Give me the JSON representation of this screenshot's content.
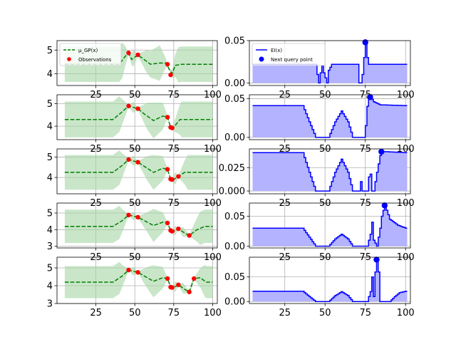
{
  "colors": {
    "mean": "#008000",
    "band": "#a5d6a5",
    "obs": "#ff0000",
    "ei_line": "#0000ff",
    "ei_fill": "#b3b3ff",
    "grid": "#b0b0b0"
  },
  "legend_gp": {
    "mean": "μ_GP(x)",
    "obs": "Observations"
  },
  "legend_ei": {
    "ei": "EI(x)",
    "query": "Next query point"
  },
  "chart_data": [
    {
      "type": "line",
      "panel": "gp",
      "row": 0,
      "xlim": [
        0,
        103
      ],
      "ylim": [
        3.5,
        5.4
      ],
      "xticks": [
        25,
        50,
        75,
        100
      ],
      "xtick_labels": [
        "25",
        "50",
        "75",
        "100"
      ],
      "yticks": [
        4,
        5
      ],
      "ytick_labels": [
        "4",
        "5"
      ],
      "grid": true,
      "legend": "upper-left",
      "observations": [
        [
          46,
          4.88
        ],
        [
          52,
          4.8
        ],
        [
          71,
          4.4
        ],
        [
          73,
          3.95
        ]
      ],
      "mean_curve": [
        [
          5,
          4.4
        ],
        [
          40,
          4.4
        ],
        [
          44,
          4.75
        ],
        [
          46,
          4.85
        ],
        [
          48,
          4.6
        ],
        [
          50,
          4.7
        ],
        [
          52,
          4.78
        ],
        [
          55,
          4.65
        ],
        [
          60,
          4.4
        ],
        [
          66,
          4.45
        ],
        [
          70,
          4.45
        ],
        [
          72,
          4.2
        ],
        [
          74,
          4.0
        ],
        [
          76,
          4.35
        ],
        [
          80,
          4.4
        ],
        [
          100,
          4.4
        ]
      ],
      "band_half_width": [
        [
          5,
          0.75
        ],
        [
          42,
          0.75
        ],
        [
          46,
          0.05
        ],
        [
          49,
          0.35
        ],
        [
          52,
          0.05
        ],
        [
          58,
          0.5
        ],
        [
          66,
          0.75
        ],
        [
          71,
          0.05
        ],
        [
          73,
          0.05
        ],
        [
          78,
          0.75
        ],
        [
          100,
          0.75
        ]
      ]
    },
    {
      "type": "area",
      "panel": "ei",
      "row": 0,
      "xlim": [
        3,
        103
      ],
      "ylim": [
        -0.003,
        0.05
      ],
      "xticks": [
        25,
        50,
        75,
        100
      ],
      "xtick_labels": [
        "25",
        "50",
        "75",
        "100"
      ],
      "yticks": [
        0.0,
        0.05
      ],
      "ytick_labels": [
        "0.00",
        "0.05"
      ],
      "grid": true,
      "legend": "upper-left",
      "next_query": [
        75,
        0.048
      ],
      "curve": [
        [
          5,
          0.022
        ],
        [
          44,
          0.022
        ],
        [
          45,
          0.01
        ],
        [
          46,
          0.0
        ],
        [
          47,
          0.012
        ],
        [
          48,
          0.02
        ],
        [
          49,
          0.012
        ],
        [
          51,
          0.0
        ],
        [
          52,
          0.015
        ],
        [
          54,
          0.022
        ],
        [
          70,
          0.022
        ],
        [
          71,
          0.0
        ],
        [
          72,
          0.0
        ],
        [
          73,
          0.01
        ],
        [
          74,
          0.03
        ],
        [
          75,
          0.048
        ],
        [
          76,
          0.03
        ],
        [
          77,
          0.022
        ],
        [
          100,
          0.022
        ]
      ]
    },
    {
      "type": "line",
      "panel": "gp",
      "row": 1,
      "xlim": [
        0,
        103
      ],
      "ylim": [
        3.4,
        5.4
      ],
      "xticks": [
        25,
        50,
        75,
        100
      ],
      "xtick_labels": [
        "25",
        "50",
        "75",
        "100"
      ],
      "yticks": [
        4,
        5
      ],
      "ytick_labels": [
        "4",
        "5"
      ],
      "grid": true,
      "observations": [
        [
          46,
          4.9
        ],
        [
          52,
          4.78
        ],
        [
          71,
          4.4
        ],
        [
          73,
          3.95
        ],
        [
          74,
          3.92
        ]
      ],
      "mean_curve": [
        [
          5,
          4.3
        ],
        [
          36,
          4.3
        ],
        [
          42,
          4.65
        ],
        [
          46,
          4.9
        ],
        [
          52,
          4.78
        ],
        [
          56,
          4.55
        ],
        [
          62,
          4.25
        ],
        [
          68,
          4.45
        ],
        [
          71,
          4.4
        ],
        [
          73,
          3.95
        ],
        [
          75,
          3.95
        ],
        [
          79,
          4.3
        ],
        [
          100,
          4.3
        ]
      ],
      "band_half_width": [
        [
          5,
          0.8
        ],
        [
          40,
          0.8
        ],
        [
          46,
          0.05
        ],
        [
          49,
          0.25
        ],
        [
          52,
          0.05
        ],
        [
          58,
          0.6
        ],
        [
          62,
          0.8
        ],
        [
          68,
          0.6
        ],
        [
          71,
          0.05
        ],
        [
          74,
          0.05
        ],
        [
          80,
          0.8
        ],
        [
          100,
          0.8
        ]
      ]
    },
    {
      "type": "area",
      "panel": "ei",
      "row": 1,
      "xlim": [
        3,
        103
      ],
      "ylim": [
        -0.003,
        0.055
      ],
      "xticks": [
        25,
        50,
        75,
        100
      ],
      "xtick_labels": [
        "25",
        "50",
        "75",
        "100"
      ],
      "yticks": [
        0.0,
        0.05
      ],
      "ytick_labels": [
        "0.00",
        "0.05"
      ],
      "grid": true,
      "next_query": [
        78,
        0.052
      ],
      "curve": [
        [
          5,
          0.041
        ],
        [
          36,
          0.041
        ],
        [
          40,
          0.02
        ],
        [
          44,
          0.0
        ],
        [
          52,
          0.0
        ],
        [
          56,
          0.02
        ],
        [
          60,
          0.034
        ],
        [
          64,
          0.02
        ],
        [
          67,
          0.0
        ],
        [
          72,
          0.0
        ],
        [
          74,
          0.0
        ],
        [
          75,
          0.015
        ],
        [
          76,
          0.04
        ],
        [
          77,
          0.05
        ],
        [
          78,
          0.052
        ],
        [
          80,
          0.046
        ],
        [
          84,
          0.042
        ],
        [
          100,
          0.041
        ]
      ]
    },
    {
      "type": "line",
      "panel": "gp",
      "row": 2,
      "xlim": [
        0,
        103
      ],
      "ylim": [
        3.2,
        5.4
      ],
      "xticks": [
        25,
        50,
        75,
        100
      ],
      "xtick_labels": [
        "25",
        "50",
        "75",
        "100"
      ],
      "yticks": [
        4,
        5
      ],
      "ytick_labels": [
        "4",
        "5"
      ],
      "grid": true,
      "observations": [
        [
          46,
          4.88
        ],
        [
          52,
          4.75
        ],
        [
          71,
          4.4
        ],
        [
          73,
          3.92
        ],
        [
          74,
          3.9
        ],
        [
          78,
          4.05
        ]
      ],
      "mean_curve": [
        [
          5,
          4.25
        ],
        [
          36,
          4.25
        ],
        [
          42,
          4.6
        ],
        [
          46,
          4.88
        ],
        [
          52,
          4.75
        ],
        [
          56,
          4.55
        ],
        [
          62,
          4.25
        ],
        [
          68,
          4.45
        ],
        [
          71,
          4.4
        ],
        [
          73,
          3.92
        ],
        [
          75,
          3.9
        ],
        [
          78,
          4.05
        ],
        [
          82,
          4.25
        ],
        [
          100,
          4.25
        ]
      ],
      "band_half_width": [
        [
          5,
          0.85
        ],
        [
          40,
          0.85
        ],
        [
          46,
          0.05
        ],
        [
          49,
          0.25
        ],
        [
          52,
          0.05
        ],
        [
          58,
          0.6
        ],
        [
          62,
          0.85
        ],
        [
          68,
          0.6
        ],
        [
          71,
          0.05
        ],
        [
          74,
          0.05
        ],
        [
          76,
          0.3
        ],
        [
          78,
          0.05
        ],
        [
          84,
          0.85
        ],
        [
          100,
          0.85
        ]
      ]
    },
    {
      "type": "area",
      "panel": "ei",
      "row": 2,
      "xlim": [
        3,
        103
      ],
      "ylim": [
        -0.003,
        0.045
      ],
      "xticks": [
        25,
        50,
        75,
        100
      ],
      "xtick_labels": [
        "25",
        "50",
        "75",
        "100"
      ],
      "yticks": [
        0.0,
        0.025
      ],
      "ytick_labels": [
        "0.000",
        "0.025"
      ],
      "grid": true,
      "next_query": [
        85,
        0.042
      ],
      "curve": [
        [
          5,
          0.041
        ],
        [
          36,
          0.041
        ],
        [
          40,
          0.02
        ],
        [
          44,
          0.0
        ],
        [
          52,
          0.0
        ],
        [
          56,
          0.02
        ],
        [
          60,
          0.034
        ],
        [
          64,
          0.02
        ],
        [
          67,
          0.0
        ],
        [
          71,
          0.0
        ],
        [
          72,
          0.01
        ],
        [
          73,
          0.0
        ],
        [
          76,
          0.0
        ],
        [
          77,
          0.015
        ],
        [
          78,
          0.018
        ],
        [
          79,
          0.0
        ],
        [
          80,
          0.0
        ],
        [
          82,
          0.02
        ],
        [
          84,
          0.038
        ],
        [
          85,
          0.042
        ],
        [
          88,
          0.042
        ],
        [
          100,
          0.041
        ]
      ]
    },
    {
      "type": "line",
      "panel": "gp",
      "row": 3,
      "xlim": [
        0,
        103
      ],
      "ylim": [
        2.9,
        5.6
      ],
      "xticks": [
        25,
        50,
        75,
        100
      ],
      "xtick_labels": [
        "25",
        "50",
        "75",
        "100"
      ],
      "yticks": [
        3,
        4,
        5
      ],
      "ytick_labels": [
        "3",
        "4",
        "5"
      ],
      "grid": true,
      "observations": [
        [
          46,
          4.88
        ],
        [
          52,
          4.75
        ],
        [
          71,
          4.4
        ],
        [
          73,
          3.95
        ],
        [
          74,
          3.9
        ],
        [
          78,
          4.05
        ],
        [
          85,
          3.65
        ]
      ],
      "mean_curve": [
        [
          5,
          4.2
        ],
        [
          36,
          4.2
        ],
        [
          42,
          4.55
        ],
        [
          46,
          4.88
        ],
        [
          52,
          4.75
        ],
        [
          56,
          4.55
        ],
        [
          62,
          4.25
        ],
        [
          68,
          4.45
        ],
        [
          71,
          4.4
        ],
        [
          73,
          3.95
        ],
        [
          75,
          3.9
        ],
        [
          78,
          4.05
        ],
        [
          82,
          3.8
        ],
        [
          85,
          3.65
        ],
        [
          90,
          4.0
        ],
        [
          95,
          4.2
        ],
        [
          100,
          4.2
        ]
      ],
      "band_half_width": [
        [
          5,
          1.0
        ],
        [
          40,
          1.0
        ],
        [
          46,
          0.05
        ],
        [
          49,
          0.25
        ],
        [
          52,
          0.05
        ],
        [
          58,
          0.6
        ],
        [
          62,
          1.0
        ],
        [
          68,
          0.6
        ],
        [
          71,
          0.05
        ],
        [
          74,
          0.05
        ],
        [
          76,
          0.3
        ],
        [
          78,
          0.05
        ],
        [
          81,
          0.3
        ],
        [
          85,
          0.05
        ],
        [
          92,
          1.0
        ],
        [
          100,
          1.0
        ]
      ]
    },
    {
      "type": "area",
      "panel": "ei",
      "row": 3,
      "xlim": [
        3,
        103
      ],
      "ylim": [
        -0.003,
        0.072
      ],
      "xticks": [
        25,
        50,
        75,
        100
      ],
      "xtick_labels": [
        "25",
        "50",
        "75",
        "100"
      ],
      "yticks": [
        0.0,
        0.05
      ],
      "ytick_labels": [
        "0.00",
        "0.05"
      ],
      "grid": true,
      "next_query": [
        87,
        0.068
      ],
      "curve": [
        [
          5,
          0.03
        ],
        [
          36,
          0.03
        ],
        [
          40,
          0.015
        ],
        [
          44,
          0.0
        ],
        [
          52,
          0.0
        ],
        [
          56,
          0.012
        ],
        [
          60,
          0.02
        ],
        [
          64,
          0.012
        ],
        [
          67,
          0.0
        ],
        [
          76,
          0.0
        ],
        [
          78,
          0.02
        ],
        [
          79,
          0.04
        ],
        [
          80,
          0.01
        ],
        [
          82,
          0.0
        ],
        [
          84,
          0.03
        ],
        [
          85,
          0.05
        ],
        [
          86,
          0.06
        ],
        [
          87,
          0.068
        ],
        [
          88,
          0.06
        ],
        [
          90,
          0.045
        ],
        [
          95,
          0.035
        ],
        [
          100,
          0.03
        ]
      ]
    },
    {
      "type": "line",
      "panel": "gp",
      "row": 4,
      "xlim": [
        0,
        103
      ],
      "ylim": [
        3.0,
        5.6
      ],
      "xticks": [
        25,
        50,
        75,
        100
      ],
      "xtick_labels": [
        "25",
        "50",
        "75",
        "100"
      ],
      "yticks": [
        3,
        4,
        5
      ],
      "ytick_labels": [
        "3",
        "4",
        "5"
      ],
      "grid": true,
      "observations": [
        [
          46,
          4.88
        ],
        [
          52,
          4.75
        ],
        [
          71,
          4.4
        ],
        [
          73,
          3.92
        ],
        [
          74,
          3.9
        ],
        [
          78,
          4.05
        ],
        [
          85,
          3.65
        ],
        [
          88,
          4.4
        ]
      ],
      "mean_curve": [
        [
          5,
          4.2
        ],
        [
          36,
          4.2
        ],
        [
          42,
          4.55
        ],
        [
          46,
          4.88
        ],
        [
          52,
          4.75
        ],
        [
          56,
          4.55
        ],
        [
          62,
          4.25
        ],
        [
          68,
          4.45
        ],
        [
          71,
          4.4
        ],
        [
          73,
          3.92
        ],
        [
          75,
          3.9
        ],
        [
          78,
          4.05
        ],
        [
          82,
          3.8
        ],
        [
          85,
          3.65
        ],
        [
          88,
          4.4
        ],
        [
          92,
          4.45
        ],
        [
          96,
          4.2
        ],
        [
          100,
          4.2
        ]
      ],
      "band_half_width": [
        [
          5,
          0.9
        ],
        [
          40,
          0.9
        ],
        [
          46,
          0.05
        ],
        [
          49,
          0.25
        ],
        [
          52,
          0.05
        ],
        [
          58,
          0.6
        ],
        [
          62,
          0.9
        ],
        [
          68,
          0.6
        ],
        [
          71,
          0.05
        ],
        [
          74,
          0.05
        ],
        [
          76,
          0.3
        ],
        [
          78,
          0.05
        ],
        [
          81,
          0.3
        ],
        [
          85,
          0.05
        ],
        [
          86,
          0.2
        ],
        [
          88,
          0.05
        ],
        [
          95,
          0.9
        ],
        [
          100,
          0.9
        ]
      ]
    },
    {
      "type": "area",
      "panel": "ei",
      "row": 4,
      "xlim": [
        3,
        103
      ],
      "ylim": [
        -0.004,
        0.09
      ],
      "xticks": [
        25,
        50,
        75,
        100
      ],
      "xtick_labels": [
        "25",
        "50",
        "75",
        "100"
      ],
      "yticks": [
        0.0,
        0.05
      ],
      "ytick_labels": [
        "0.00",
        "0.05"
      ],
      "grid": true,
      "next_query": [
        82,
        0.085
      ],
      "curve": [
        [
          5,
          0.021
        ],
        [
          36,
          0.021
        ],
        [
          40,
          0.01
        ],
        [
          44,
          0.0
        ],
        [
          52,
          0.0
        ],
        [
          56,
          0.012
        ],
        [
          60,
          0.02
        ],
        [
          64,
          0.012
        ],
        [
          67,
          0.0
        ],
        [
          76,
          0.0
        ],
        [
          78,
          0.02
        ],
        [
          79,
          0.05
        ],
        [
          80,
          0.01
        ],
        [
          81,
          0.06
        ],
        [
          82,
          0.085
        ],
        [
          83,
          0.06
        ],
        [
          84,
          0.0
        ],
        [
          90,
          0.0
        ],
        [
          93,
          0.01
        ],
        [
          96,
          0.018
        ],
        [
          100,
          0.021
        ]
      ]
    }
  ]
}
